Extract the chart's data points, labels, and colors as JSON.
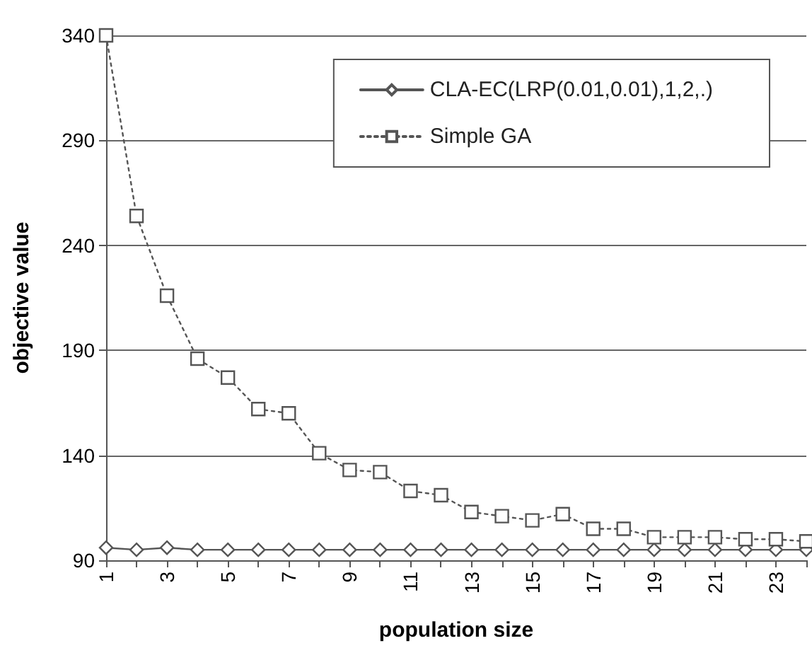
{
  "chart_data": {
    "type": "line",
    "xlabel": "population size",
    "ylabel": "objective value",
    "categories": [
      "1",
      null,
      "3",
      null,
      "5",
      null,
      "7",
      null,
      "9",
      null,
      "11",
      null,
      "13",
      null,
      "15",
      null,
      "17",
      null,
      "19",
      null,
      "21",
      null,
      "23",
      null
    ],
    "series": [
      {
        "name": "CLA-EC(LRP(0.01,0.01),1,2,.)",
        "color": "#555555",
        "marker": "diamond",
        "line_style": "solid",
        "values": [
          96,
          95,
          96,
          95,
          95,
          95,
          95,
          95,
          95,
          95,
          95,
          95,
          95,
          95,
          95,
          95,
          95,
          95,
          95,
          95,
          95,
          95,
          95,
          95
        ]
      },
      {
        "name": "Simple GA",
        "color": "#555555",
        "marker": "square",
        "line_style": "dotted",
        "values": [
          340,
          254,
          216,
          186,
          177,
          162,
          160,
          141,
          133,
          132,
          123,
          121,
          113,
          111,
          109,
          112,
          105,
          105,
          101,
          101,
          101,
          100,
          100,
          99
        ]
      }
    ],
    "ylim": [
      90,
      340
    ],
    "yticks": [
      90,
      140,
      190,
      240,
      290,
      340
    ],
    "grid": "y",
    "legend": "top right"
  }
}
